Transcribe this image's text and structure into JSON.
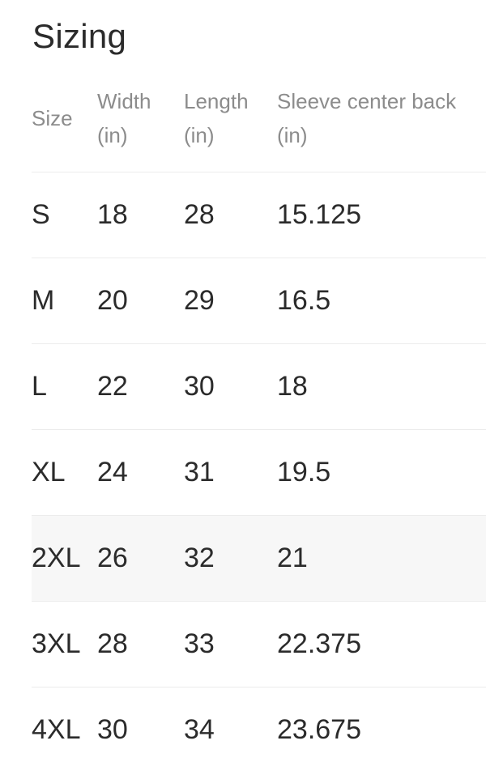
{
  "section": {
    "title": "Sizing"
  },
  "table": {
    "headers": [
      {
        "label": "Size"
      },
      {
        "label": "Width",
        "unit": "(in)"
      },
      {
        "label": "Length",
        "unit": "(in)"
      },
      {
        "label": "Sleeve center back",
        "unit": "(in)"
      }
    ],
    "rows": [
      {
        "size": "S",
        "width": "18",
        "length": "28",
        "sleeve": "15.125"
      },
      {
        "size": "M",
        "width": "20",
        "length": "29",
        "sleeve": "16.5"
      },
      {
        "size": "L",
        "width": "22",
        "length": "30",
        "sleeve": "18"
      },
      {
        "size": "XL",
        "width": "24",
        "length": "31",
        "sleeve": "19.5"
      },
      {
        "size": "2XL",
        "width": "26",
        "length": "32",
        "sleeve": "21"
      },
      {
        "size": "3XL",
        "width": "28",
        "length": "33",
        "sleeve": "22.375"
      },
      {
        "size": "4XL",
        "width": "30",
        "length": "34",
        "sleeve": "23.675"
      }
    ],
    "highlighted_row": "2XL"
  },
  "colors": {
    "text": "#2b2b2b",
    "header_text": "#8c8c8c",
    "divider": "#ececec",
    "highlight_row_bg": "#f7f7f7",
    "background": "#ffffff"
  }
}
